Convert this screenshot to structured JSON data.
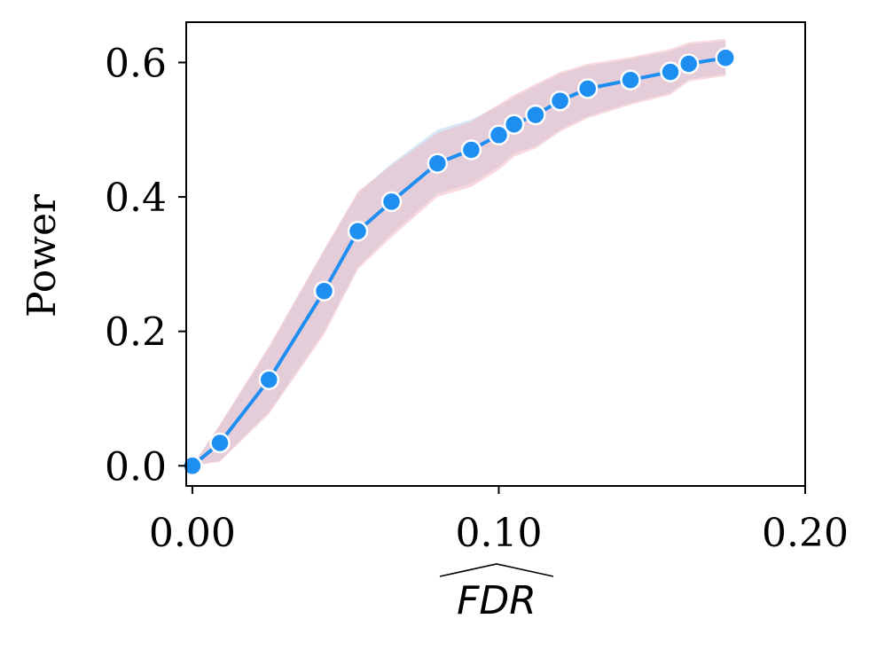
{
  "chart_data": {
    "type": "line",
    "title": "",
    "xlabel": "FDR",
    "xlabel_hat": true,
    "ylabel": "Power",
    "xlim": [
      -0.002,
      0.2
    ],
    "ylim": [
      -0.03,
      0.66
    ],
    "xticks": [
      0.0,
      0.1,
      0.2
    ],
    "xtick_labels": [
      "0.00",
      "0.10",
      "0.20"
    ],
    "yticks": [
      0.0,
      0.2,
      0.4,
      0.6
    ],
    "ytick_labels": [
      "0.0",
      "0.2",
      "0.4",
      "0.6"
    ],
    "grid": false,
    "series": [
      {
        "name": "Power",
        "color": "#1f8ef1",
        "x": [
          0.0,
          0.009,
          0.025,
          0.043,
          0.054,
          0.065,
          0.08,
          0.091,
          0.1,
          0.105,
          0.112,
          0.12,
          0.129,
          0.143,
          0.156,
          0.162,
          0.174
        ],
        "y": [
          0.0,
          0.034,
          0.128,
          0.26,
          0.349,
          0.393,
          0.45,
          0.47,
          0.492,
          0.508,
          0.522,
          0.543,
          0.561,
          0.574,
          0.586,
          0.598,
          0.607
        ]
      }
    ],
    "bands": [
      {
        "name": "band-blue",
        "color": "#aecdea",
        "x": [
          0.0,
          0.009,
          0.025,
          0.043,
          0.054,
          0.065,
          0.08,
          0.091,
          0.1,
          0.105,
          0.112,
          0.12,
          0.129,
          0.143,
          0.156,
          0.162,
          0.174
        ],
        "lower": [
          0.0,
          0.008,
          0.08,
          0.2,
          0.295,
          0.345,
          0.405,
          0.42,
          0.445,
          0.465,
          0.475,
          0.5,
          0.52,
          0.54,
          0.555,
          0.575,
          0.583
        ],
        "upper": [
          0.0,
          0.06,
          0.175,
          0.32,
          0.405,
          0.45,
          0.5,
          0.515,
          0.535,
          0.548,
          0.565,
          0.583,
          0.595,
          0.605,
          0.617,
          0.627,
          0.632
        ]
      },
      {
        "name": "band-red",
        "color": "#f2b3bd",
        "x": [
          0.0,
          0.009,
          0.025,
          0.043,
          0.054,
          0.065,
          0.08,
          0.091,
          0.1,
          0.105,
          0.112,
          0.12,
          0.129,
          0.143,
          0.156,
          0.162,
          0.174
        ],
        "lower": [
          0.0,
          0.006,
          0.077,
          0.195,
          0.292,
          0.34,
          0.4,
          0.415,
          0.44,
          0.46,
          0.472,
          0.497,
          0.517,
          0.537,
          0.552,
          0.572,
          0.58
        ],
        "upper": [
          0.0,
          0.062,
          0.178,
          0.322,
          0.408,
          0.447,
          0.495,
          0.512,
          0.538,
          0.552,
          0.568,
          0.586,
          0.598,
          0.608,
          0.62,
          0.63,
          0.635
        ]
      }
    ]
  }
}
